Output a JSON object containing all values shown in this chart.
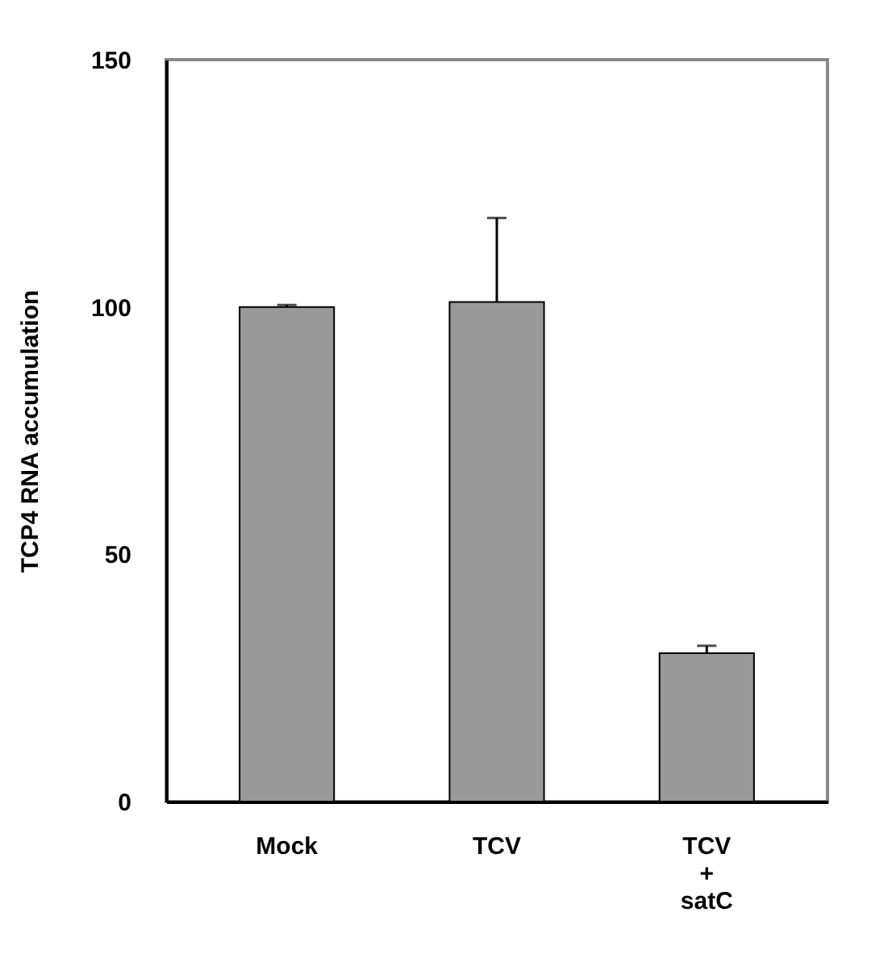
{
  "chart_data": {
    "type": "bar",
    "ylabel": "TCP4 RNA accumulation",
    "categories": [
      "Mock",
      "TCV",
      "TCV + satC"
    ],
    "values": [
      100,
      101,
      30
    ],
    "errors": [
      [
        100,
        100.4
      ],
      [
        101,
        118
      ],
      [
        30,
        31.5
      ]
    ],
    "color": "#999999",
    "ylim": [
      0,
      150
    ],
    "yticks": [
      0,
      50,
      100,
      150
    ],
    "grid": false
  }
}
